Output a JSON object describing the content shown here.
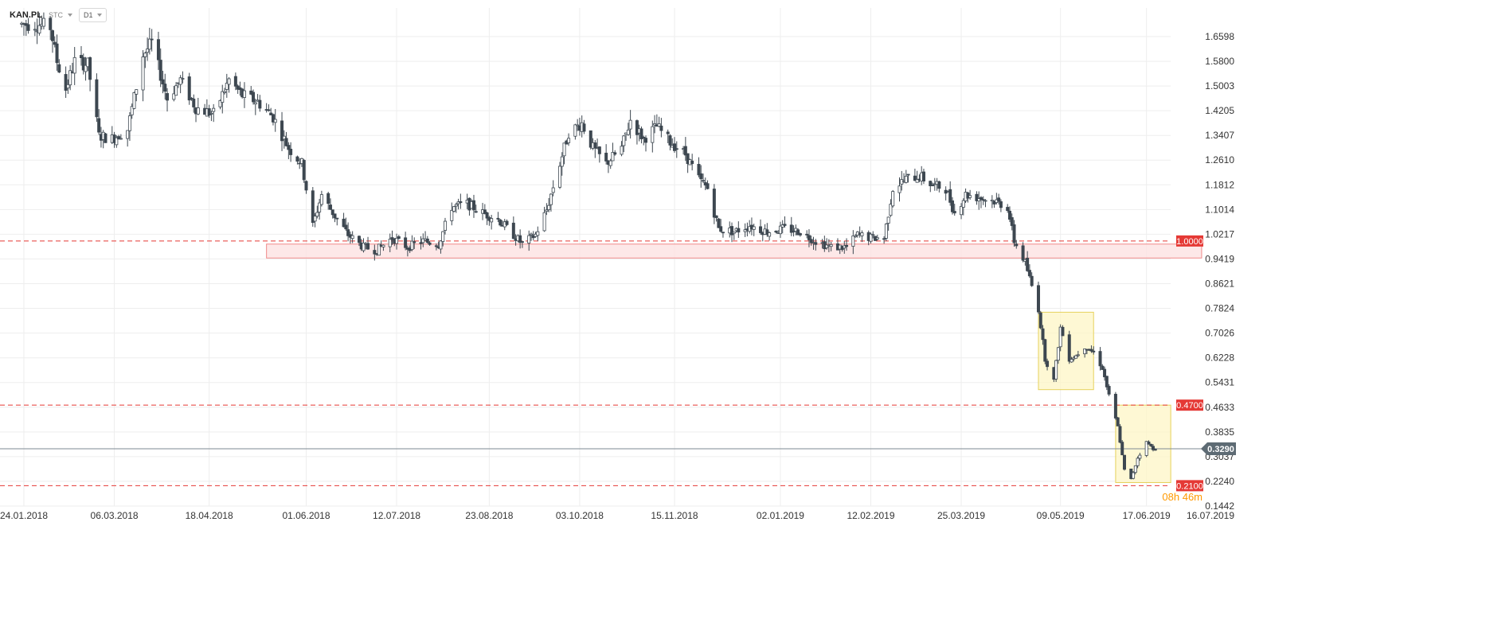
{
  "header": {
    "symbol": "KAN.PL",
    "market": "STC",
    "timeframe": "D1"
  },
  "colors": {
    "candle_up": "#ffffff",
    "candle_down": "#3d4750",
    "candle_outline": "#3d4750",
    "level_line": "#e53935",
    "level_label_bg": "#e53935",
    "support_zone_fill": "#fde2e2",
    "support_zone_stroke": "#f08a8a",
    "highlight_zone_fill": "#fdf6c6",
    "highlight_zone_stroke": "#e6d15c",
    "current_price_line": "#7d8a93",
    "current_price_bg": "#5e6b74",
    "grid": "#eeeeee",
    "countdown": "#ff9900"
  },
  "countdown": "08h 46m",
  "chart_data": {
    "type": "candlestick",
    "title": "",
    "xlabel": "",
    "ylabel": "",
    "ylim": [
      0.1442,
      1.7396
    ],
    "x_range": [
      "2018-01-23",
      "2019-07-16"
    ],
    "grid": true,
    "legend": "none",
    "y_ticks": [
      "1.6598",
      "1.5800",
      "1.5003",
      "1.4205",
      "1.3407",
      "1.2610",
      "1.1812",
      "1.1014",
      "1.0217",
      "0.9419",
      "0.8621",
      "0.7824",
      "0.7026",
      "0.6228",
      "0.5431",
      "0.4633",
      "0.3835",
      "0.3037",
      "0.2240",
      "0.1442"
    ],
    "x_ticks": [
      {
        "date": "2018-01-24",
        "label": "24.01.2018"
      },
      {
        "date": "2018-03-06",
        "label": "06.03.2018"
      },
      {
        "date": "2018-04-18",
        "label": "18.04.2018"
      },
      {
        "date": "2018-06-01",
        "label": "01.06.2018"
      },
      {
        "date": "2018-07-12",
        "label": "12.07.2018"
      },
      {
        "date": "2018-08-23",
        "label": "23.08.2018"
      },
      {
        "date": "2018-10-03",
        "label": "03.10.2018"
      },
      {
        "date": "2018-11-15",
        "label": "15.11.2018"
      },
      {
        "date": "2019-01-02",
        "label": "02.01.2019"
      },
      {
        "date": "2019-02-12",
        "label": "12.02.2019"
      },
      {
        "date": "2019-03-25",
        "label": "25.03.2019"
      },
      {
        "date": "2019-05-09",
        "label": "09.05.2019"
      },
      {
        "date": "2019-06-17",
        "label": "17.06.2019"
      },
      {
        "date": "2019-07-16",
        "label": "16.07.2019"
      }
    ],
    "price_path": [
      [
        "2018-01-23",
        1.7
      ],
      [
        "2018-01-30",
        1.7
      ],
      [
        "2018-02-05",
        1.69
      ],
      [
        "2018-02-08",
        1.58
      ],
      [
        "2018-02-12",
        1.49
      ],
      [
        "2018-02-16",
        1.58
      ],
      [
        "2018-02-22",
        1.57
      ],
      [
        "2018-02-27",
        1.34
      ],
      [
        "2018-03-05",
        1.33
      ],
      [
        "2018-03-12",
        1.36
      ],
      [
        "2018-03-19",
        1.6
      ],
      [
        "2018-03-23",
        1.64
      ],
      [
        "2018-03-30",
        1.46
      ],
      [
        "2018-04-05",
        1.52
      ],
      [
        "2018-04-12",
        1.43
      ],
      [
        "2018-04-20",
        1.41
      ],
      [
        "2018-04-27",
        1.52
      ],
      [
        "2018-05-03",
        1.47
      ],
      [
        "2018-05-10",
        1.45
      ],
      [
        "2018-05-17",
        1.4
      ],
      [
        "2018-05-24",
        1.3
      ],
      [
        "2018-05-30",
        1.25
      ],
      [
        "2018-06-04",
        1.05
      ],
      [
        "2018-06-08",
        1.15
      ],
      [
        "2018-06-14",
        1.08
      ],
      [
        "2018-06-20",
        1.02
      ],
      [
        "2018-06-27",
        0.98
      ],
      [
        "2018-07-03",
        0.97
      ],
      [
        "2018-07-10",
        1.01
      ],
      [
        "2018-07-17",
        0.98
      ],
      [
        "2018-07-24",
        1.0
      ],
      [
        "2018-07-31",
        0.99
      ],
      [
        "2018-08-06",
        1.11
      ],
      [
        "2018-08-13",
        1.12
      ],
      [
        "2018-08-20",
        1.09
      ],
      [
        "2018-08-27",
        1.07
      ],
      [
        "2018-09-03",
        1.02
      ],
      [
        "2018-09-07",
        0.99
      ],
      [
        "2018-09-13",
        1.02
      ],
      [
        "2018-09-18",
        1.1
      ],
      [
        "2018-09-24",
        1.25
      ],
      [
        "2018-09-28",
        1.35
      ],
      [
        "2018-10-04",
        1.38
      ],
      [
        "2018-10-09",
        1.3
      ],
      [
        "2018-10-15",
        1.25
      ],
      [
        "2018-10-22",
        1.3
      ],
      [
        "2018-10-26",
        1.39
      ],
      [
        "2018-11-01",
        1.33
      ],
      [
        "2018-11-07",
        1.37
      ],
      [
        "2018-11-13",
        1.32
      ],
      [
        "2018-11-20",
        1.28
      ],
      [
        "2018-11-26",
        1.2
      ],
      [
        "2018-11-30",
        1.17
      ],
      [
        "2018-12-05",
        1.04
      ],
      [
        "2018-12-12",
        1.03
      ],
      [
        "2018-12-19",
        1.05
      ],
      [
        "2018-12-27",
        1.03
      ],
      [
        "2019-01-04",
        1.04
      ],
      [
        "2019-01-11",
        1.03
      ],
      [
        "2019-01-18",
        1.0
      ],
      [
        "2019-01-25",
        0.98
      ],
      [
        "2019-02-01",
        0.98
      ],
      [
        "2019-02-06",
        1.02
      ],
      [
        "2019-02-12",
        1.01
      ],
      [
        "2019-02-18",
        1.01
      ],
      [
        "2019-02-22",
        1.17
      ],
      [
        "2019-02-28",
        1.2
      ],
      [
        "2019-03-06",
        1.21
      ],
      [
        "2019-03-12",
        1.18
      ],
      [
        "2019-03-18",
        1.17
      ],
      [
        "2019-03-22",
        1.09
      ],
      [
        "2019-03-27",
        1.15
      ],
      [
        "2019-04-02",
        1.14
      ],
      [
        "2019-04-09",
        1.13
      ],
      [
        "2019-04-15",
        1.11
      ],
      [
        "2019-04-18",
        1.0
      ],
      [
        "2019-04-23",
        0.93
      ],
      [
        "2019-04-29",
        0.78
      ],
      [
        "2019-05-02",
        0.62
      ],
      [
        "2019-05-06",
        0.55
      ],
      [
        "2019-05-09",
        0.72
      ],
      [
        "2019-05-13",
        0.62
      ],
      [
        "2019-05-16",
        0.63
      ],
      [
        "2019-05-20",
        0.66
      ],
      [
        "2019-05-24",
        0.64
      ],
      [
        "2019-05-28",
        0.59
      ],
      [
        "2019-05-31",
        0.5
      ],
      [
        "2019-06-04",
        0.4
      ],
      [
        "2019-06-07",
        0.26
      ],
      [
        "2019-06-10",
        0.23
      ],
      [
        "2019-06-13",
        0.3
      ],
      [
        "2019-06-17",
        0.35
      ],
      [
        "2019-06-20",
        0.33
      ],
      [
        "2019-06-21",
        0.329
      ]
    ],
    "levels": [
      {
        "price": 1.0,
        "label": "1.0000"
      },
      {
        "price": 0.47,
        "label": "0.4700"
      },
      {
        "price": 0.21,
        "label": "0.2100"
      }
    ],
    "current_price": {
      "price": 0.329,
      "label": "0.3290"
    },
    "zones": [
      {
        "kind": "support",
        "from_date": "2018-05-14",
        "to_date": "2019-07-12",
        "low": 0.945,
        "high": 0.99
      },
      {
        "kind": "highlight",
        "from_date": "2019-04-29",
        "to_date": "2019-05-24",
        "low": 0.52,
        "high": 0.77
      },
      {
        "kind": "highlight",
        "from_date": "2019-06-03",
        "to_date": "2019-06-28",
        "low": 0.22,
        "high": 0.47
      }
    ]
  }
}
